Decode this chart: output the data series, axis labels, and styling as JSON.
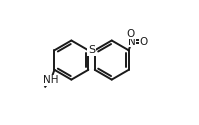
{
  "bg_color": "#ffffff",
  "line_color": "#1a1a1a",
  "lw": 1.4,
  "font_size": 7.5,
  "r1cx": 0.27,
  "r1cy": 0.52,
  "r2cx": 0.6,
  "r2cy": 0.52,
  "ring_r": 0.16,
  "S_label": "S",
  "NH_label": "NH",
  "N_label": "N",
  "O_label": "O"
}
